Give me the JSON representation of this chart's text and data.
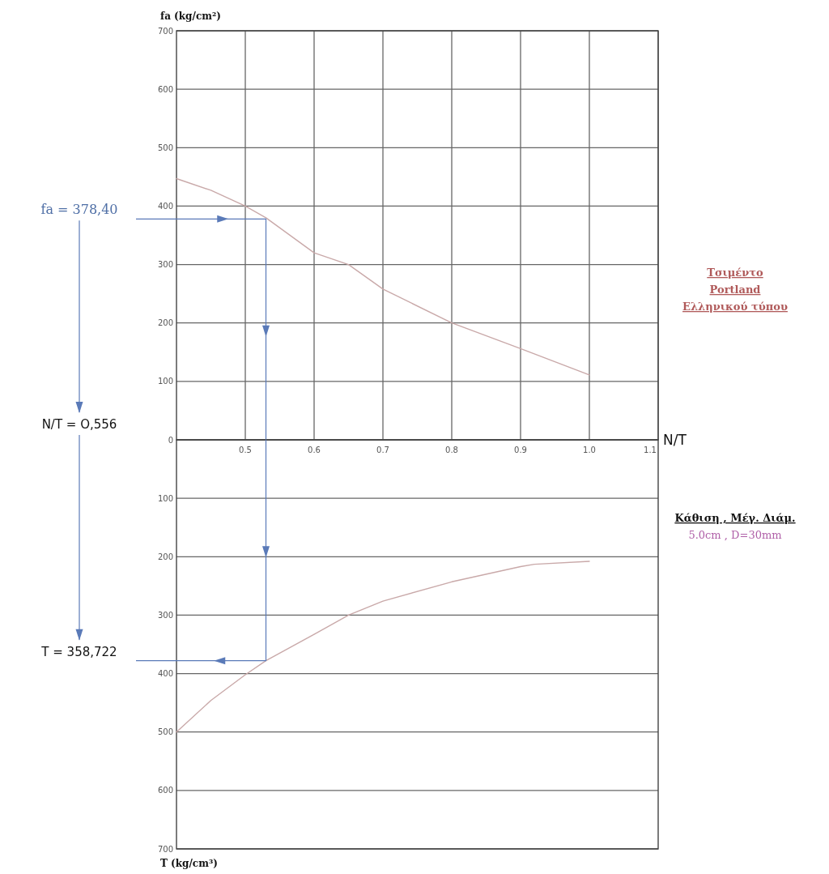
{
  "chart_data": [
    {
      "type": "line",
      "ylabel": "fa (kg/cm²)",
      "xlabel": "N/T",
      "xlim": [
        0.4,
        1.1
      ],
      "xticks": [
        0.5,
        0.6,
        0.7,
        0.8,
        0.9,
        {
          "value": 1,
          "label": "1.0"
        },
        1.1
      ],
      "ylim": [
        0,
        700
      ],
      "yticks": [
        0,
        100,
        200,
        300,
        400,
        500,
        600,
        700
      ],
      "grid": true,
      "series": [
        {
          "color": "#c9a9a9",
          "x": [
            0.4,
            0.45,
            0.5,
            0.53,
            0.6,
            0.65,
            0.7,
            0.8,
            0.9,
            1.0
          ],
          "values": [
            447,
            427,
            400,
            380,
            320,
            300,
            258,
            200,
            156,
            111
          ]
        },
        {
          "color": "#5a7ab8",
          "x": [
            0.4,
            0.53,
            0.53
          ],
          "values": [
            378,
            378,
            0
          ]
        }
      ],
      "annotations": [
        "fa = 378,40",
        "Τσιμέντο",
        "Portland",
        "Ελληνικού τύπου"
      ]
    },
    {
      "type": "line",
      "ylabel": "T (kg/cm³)",
      "xlim": [
        0.4,
        1.1
      ],
      "ylim": [
        700,
        0
      ],
      "yticks": [
        100,
        200,
        300,
        400,
        500,
        600,
        700
      ],
      "grid": true,
      "tick_labels": "y",
      "series": [
        {
          "color": "#c9a9a9",
          "x": [
            0.4,
            0.45,
            0.5,
            0.53,
            0.6,
            0.65,
            0.7,
            0.8,
            0.9,
            0.92,
            1.0
          ],
          "values": [
            500,
            446,
            402,
            378,
            333,
            300,
            276,
            243,
            217,
            213,
            208
          ]
        },
        {
          "color": "#5a7ab8",
          "x": [
            0.53,
            0.53,
            0.4
          ],
          "values": [
            0,
            378,
            378
          ]
        }
      ],
      "annotations": [
        "N/T = O,556",
        "T = 358,722",
        "Κάθιση , Μέγ. Διάμ.",
        "5.0cm , D=30mm"
      ]
    }
  ]
}
